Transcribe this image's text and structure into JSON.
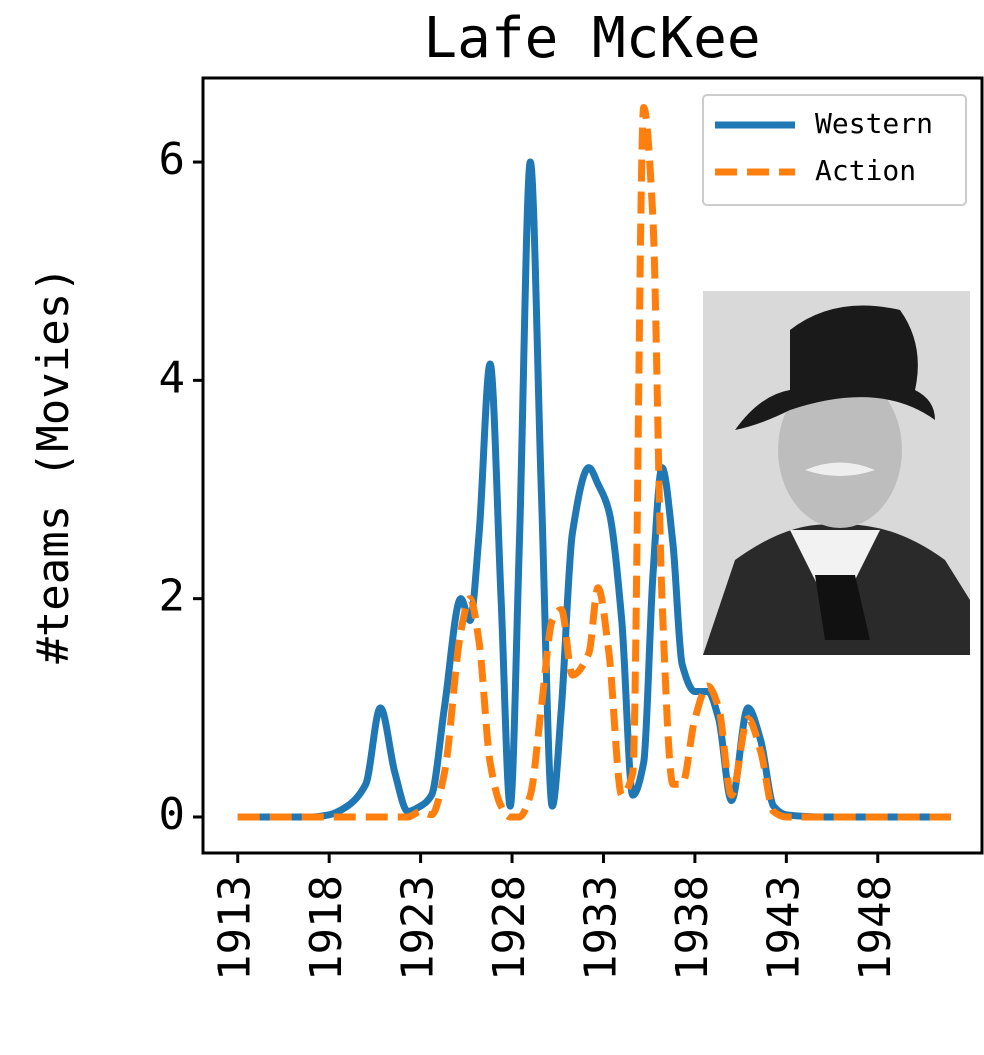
{
  "chart_data": {
    "type": "line",
    "title": "Lafe McKee",
    "y_label": "#teams (Movies)",
    "x": [
      1913,
      1915,
      1917,
      1918,
      1919,
      1920,
      1920.8,
      1921.6,
      1922.3,
      1923,
      1923.6,
      1924.3,
      1925.2,
      1925.7,
      1926.2,
      1926.8,
      1927.4,
      1927.9,
      1928.4,
      1929,
      1929.6,
      1930.2,
      1930.7,
      1931.3,
      1932.2,
      1932.7,
      1933.3,
      1934,
      1934.6,
      1935.2,
      1935.7,
      1936.2,
      1936.8,
      1937.3,
      1938,
      1938.7,
      1939.3,
      1940,
      1940.9,
      1941.6,
      1942.3,
      1943,
      1945,
      1948,
      1952
    ],
    "series": [
      {
        "name": "Western",
        "color": "#1f77b4",
        "dash": false,
        "values": [
          0,
          0,
          0,
          0.02,
          0.1,
          0.3,
          1.0,
          0.4,
          0.05,
          0.1,
          0.2,
          1.0,
          2.0,
          1.8,
          2.6,
          4.15,
          2.0,
          0.1,
          2.5,
          6.0,
          3.0,
          0.1,
          1.0,
          2.6,
          3.2,
          3.05,
          2.8,
          1.8,
          0.2,
          0.5,
          2.2,
          3.2,
          2.5,
          1.4,
          1.15,
          1.15,
          0.9,
          0.15,
          1.0,
          0.7,
          0.1,
          0.02,
          0,
          0,
          0
        ]
      },
      {
        "name": "Action",
        "color": "#ff7f0e",
        "dash": true,
        "values": [
          0,
          0,
          0,
          0,
          0,
          0,
          0,
          0,
          0,
          0.05,
          0.02,
          0.4,
          1.7,
          2.0,
          1.6,
          0.5,
          0.1,
          0,
          0,
          0.2,
          1.0,
          1.8,
          1.9,
          1.3,
          1.5,
          2.1,
          1.5,
          0.2,
          0.4,
          6.5,
          5.5,
          2.0,
          0.3,
          0.3,
          0.9,
          1.2,
          1.0,
          0.2,
          0.9,
          0.6,
          0.05,
          0,
          0,
          0,
          0
        ]
      }
    ],
    "xlim": [
      1911.1,
      1953.7
    ],
    "ylim": [
      -0.33,
      6.77
    ],
    "xticks": [
      1913,
      1918,
      1923,
      1928,
      1933,
      1938,
      1943,
      1948
    ],
    "yticks": [
      0,
      2,
      4,
      6
    ],
    "legend": "upper right"
  }
}
